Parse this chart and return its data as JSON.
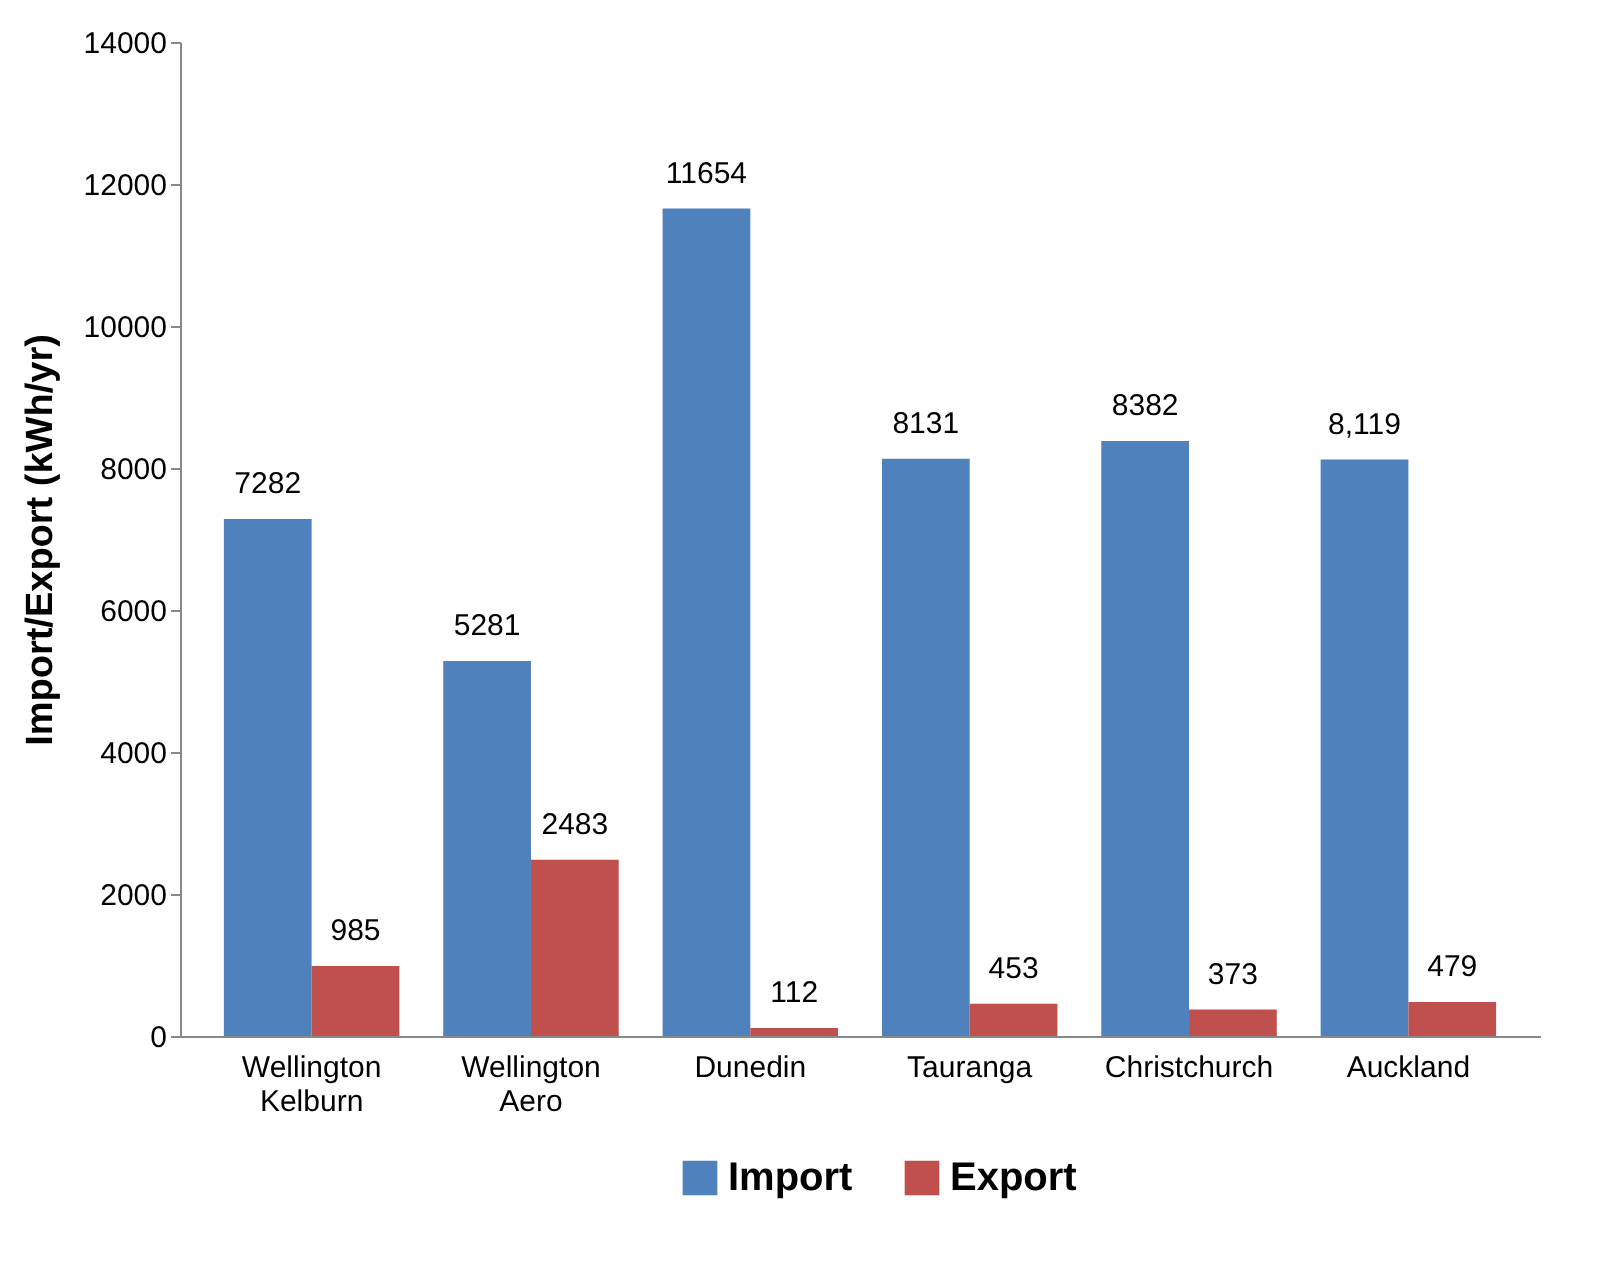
{
  "chart_data": {
    "type": "bar",
    "ylabel": "Import/Export (kWh/yr)",
    "categories": [
      "Wellington Kelburn",
      "Wellington Aero",
      "Dunedin",
      "Tauranga",
      "Christchurch",
      "Auckland"
    ],
    "series": [
      {
        "name": "Import",
        "color": "#4f81bd",
        "values": [
          7282,
          5281,
          11654,
          8131,
          8382,
          8119
        ],
        "value_labels": [
          "7282",
          "5281",
          "11654",
          "8131",
          "8382",
          "8,119"
        ]
      },
      {
        "name": "Export",
        "color": "#c0504d",
        "values": [
          985,
          2483,
          112,
          453,
          373,
          479
        ],
        "value_labels": [
          "985",
          "2483",
          "112",
          "453",
          "373",
          "479"
        ]
      }
    ],
    "ylim": [
      0,
      14000
    ],
    "yticks": [
      0,
      2000,
      4000,
      6000,
      8000,
      10000,
      12000,
      14000
    ],
    "grid": false,
    "legend": "bottom"
  }
}
